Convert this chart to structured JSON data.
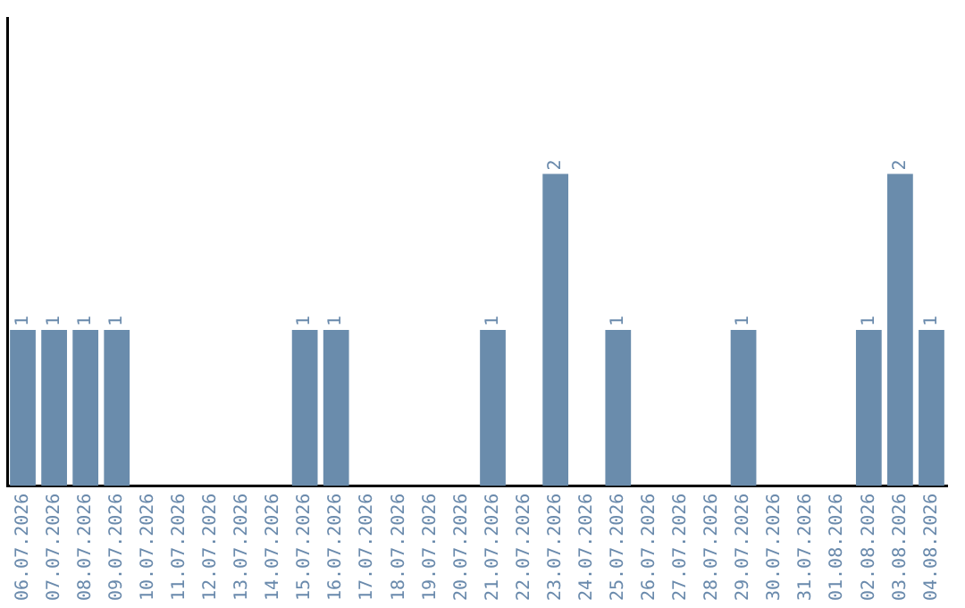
{
  "chart_data": {
    "type": "bar",
    "categories": [
      "06.07.2026",
      "07.07.2026",
      "08.07.2026",
      "09.07.2026",
      "10.07.2026",
      "11.07.2026",
      "12.07.2026",
      "13.07.2026",
      "14.07.2026",
      "15.07.2026",
      "16.07.2026",
      "17.07.2026",
      "18.07.2026",
      "19.07.2026",
      "20.07.2026",
      "21.07.2026",
      "22.07.2026",
      "23.07.2026",
      "24.07.2026",
      "25.07.2026",
      "26.07.2026",
      "27.07.2026",
      "28.07.2026",
      "29.07.2026",
      "30.07.2026",
      "31.07.2026",
      "01.08.2026",
      "02.08.2026",
      "03.08.2026",
      "04.08.2026"
    ],
    "values": [
      1,
      1,
      1,
      1,
      0,
      0,
      0,
      0,
      0,
      1,
      1,
      0,
      0,
      0,
      0,
      1,
      0,
      2,
      0,
      1,
      0,
      0,
      0,
      1,
      0,
      0,
      0,
      1,
      2,
      1
    ],
    "value_labels": [
      "1",
      "1",
      "1",
      "1",
      null,
      null,
      null,
      null,
      null,
      "1",
      "1",
      null,
      null,
      null,
      null,
      "1",
      null,
      "2",
      null,
      "1",
      null,
      null,
      null,
      "1",
      null,
      null,
      null,
      "1",
      "2",
      "1"
    ],
    "color": "#6a8cac",
    "tick_labels": "x",
    "grid": false,
    "legend": false
  }
}
